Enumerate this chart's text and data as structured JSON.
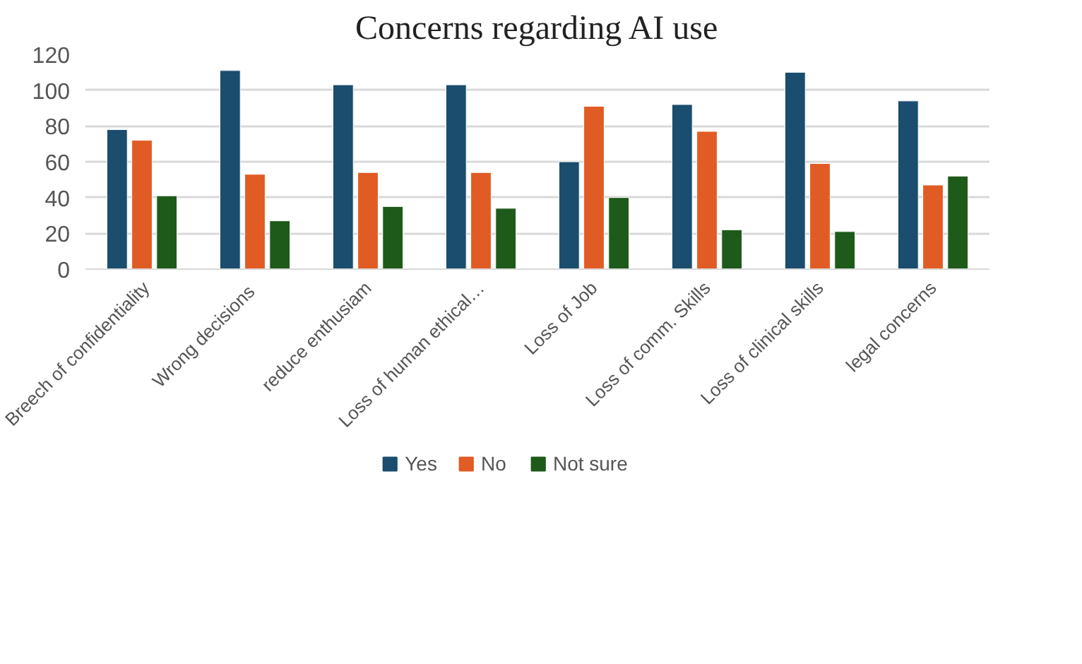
{
  "chart_data": {
    "type": "bar",
    "title": "Concerns regarding AI use",
    "categories": [
      "Breech of confidentiality",
      "Wrong  decisions",
      "reduce enthusiam",
      "Loss of human ethical…",
      "Loss of Job",
      "Loss of comm. Skills",
      "Loss of clinical skills",
      "legal concerns"
    ],
    "series": [
      {
        "name": "Yes",
        "color": "#1a4d6e",
        "values": [
          78,
          111,
          103,
          103,
          60,
          92,
          110,
          94
        ]
      },
      {
        "name": "No",
        "color": "#e05c24",
        "values": [
          72,
          53,
          54,
          54,
          91,
          77,
          59,
          47
        ]
      },
      {
        "name": "Not sure",
        "color": "#1e5a1a",
        "values": [
          41,
          27,
          35,
          34,
          40,
          22,
          21,
          52
        ]
      }
    ],
    "ylim": [
      0,
      120
    ],
    "yticks": [
      0,
      20,
      40,
      60,
      80,
      100,
      120
    ],
    "grid": "y",
    "legend": "bottom"
  }
}
